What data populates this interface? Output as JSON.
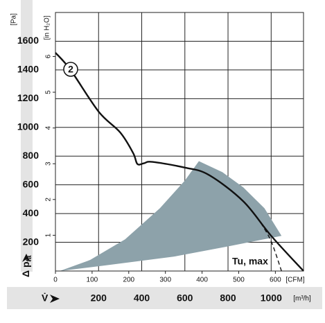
{
  "chart_data": {
    "type": "line",
    "y_unit": "[Pa]",
    "y2_unit": "[in H₂O]",
    "x_unit": "[m³/h]",
    "x2_unit": "[CFM]",
    "y_label": "Δ p",
    "y_label_sub": "fa",
    "x_label": "V̇",
    "xlim": [
      0,
      1150
    ],
    "xticks": [
      200,
      400,
      600,
      800,
      1000
    ],
    "x2lim": [
      0,
      676.8
    ],
    "x2ticks": [
      0,
      100,
      200,
      300,
      400,
      500,
      600
    ],
    "ylim": [
      0,
      1800
    ],
    "yticks": [
      200,
      400,
      600,
      800,
      1000,
      1200,
      1400,
      1600
    ],
    "y2lim": [
      0,
      7.23
    ],
    "y2ticks": [
      1,
      2,
      3,
      4,
      5,
      6
    ],
    "grid": true,
    "series": [
      {
        "color": "#8da2aa",
        "fill": true,
        "x": [
          20,
          226,
          548,
          806,
          1048,
          969,
          871,
          774,
          665,
          600,
          484,
          323,
          161
        ],
        "values": [
          0,
          38,
          100,
          173,
          245,
          437,
          582,
          688,
          765,
          630,
          437,
          221,
          77
        ]
      },
      {
        "color": "#111111",
        "x": [
          0,
          70,
          200,
          300,
          360,
          380,
          410,
          450,
          600,
          710,
          871,
          1000,
          1150
        ],
        "values": [
          1520,
          1400,
          1110,
          965,
          822,
          745,
          750,
          760,
          720,
          670,
          485,
          245,
          0
        ]
      },
      {
        "color": "#111111",
        "dashed": true,
        "x": [
          952,
          1000,
          1048
        ],
        "values": [
          335,
          207,
          0
        ]
      }
    ],
    "annotations": [
      "2",
      "Tu, max"
    ]
  }
}
